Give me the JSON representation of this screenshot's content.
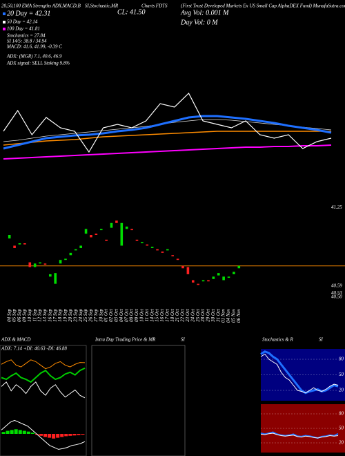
{
  "chart_data": [
    {
      "type": "line",
      "title": "20,50,100 EMA Strengths ADX,MACD,B",
      "annotations": [
        "SI,Stochastic,MR",
        "CL: 41.50",
        "Charts FDTS",
        "(First Trust Developed Markets Ex US Small Cap AlphaDEX Fund) MunafaSutra.com",
        "Avg Vol: 0.001 M",
        "Day Vol: 0 M",
        "20 Day = 42.31",
        "50 Day = 42.14",
        "100 Day = 41.81",
        "Stochastics = 27.84",
        "SI 14/5: 38.8 / 34.94",
        "MACD: 41.6, 41.99, -0.39 C",
        "ADX: (MGR) 7.1, 40.6, 46.9",
        "ADX signal: SELL Stoking 9.8%"
      ],
      "ylim": [
        40.0,
        42.0
      ],
      "series": [
        {
          "color": "#ff00ff",
          "width": 2,
          "values": [
            40.3,
            40.31,
            40.32,
            40.33,
            40.34,
            40.35,
            40.36,
            40.37,
            40.38,
            40.39,
            40.4,
            40.41,
            40.42,
            40.43,
            40.44,
            40.45,
            40.46,
            40.47,
            40.47,
            40.48,
            40.48,
            40.49,
            40.49,
            40.5
          ]
        },
        {
          "color": "#ff8c00",
          "width": 1.5,
          "values": [
            40.5,
            40.52,
            40.54,
            40.56,
            40.57,
            40.58,
            40.6,
            40.62,
            40.63,
            40.64,
            40.65,
            40.66,
            40.67,
            40.68,
            40.69,
            40.7,
            40.7,
            40.7,
            40.7,
            40.7,
            40.7,
            40.7,
            40.7,
            40.7
          ]
        },
        {
          "color": "#dddddd",
          "width": 0.8,
          "values": [
            40.55,
            40.57,
            40.6,
            40.63,
            40.65,
            40.67,
            40.69,
            40.71,
            40.73,
            40.75,
            40.77,
            40.8,
            40.83,
            40.85,
            40.87,
            40.87,
            40.86,
            40.84,
            40.82,
            40.8,
            40.78,
            40.76,
            40.74,
            40.72
          ]
        },
        {
          "color": "#1e6fff",
          "width": 3,
          "values": [
            40.45,
            40.5,
            40.55,
            40.6,
            40.62,
            40.64,
            40.65,
            40.67,
            40.7,
            40.72,
            40.75,
            40.8,
            40.85,
            40.9,
            40.92,
            40.92,
            40.9,
            40.88,
            40.85,
            40.82,
            40.78,
            40.75,
            40.72,
            40.68
          ]
        },
        {
          "color": "#ffffff",
          "width": 1.2,
          "values": [
            40.7,
            41.0,
            40.65,
            40.9,
            40.75,
            40.7,
            40.4,
            40.75,
            40.8,
            40.75,
            40.85,
            41.1,
            41.05,
            41.25,
            40.85,
            40.8,
            40.75,
            40.85,
            40.65,
            40.6,
            40.65,
            40.45,
            40.55,
            40.6
          ]
        }
      ]
    },
    {
      "type": "candlestick",
      "categories": [
        "04 Sep",
        "05 Sep",
        "06 Sep",
        "09 Sep",
        "10 Sep",
        "11 Sep",
        "12 Sep",
        "13 Sep",
        "16 Sep",
        "17 Sep",
        "18 Sep",
        "19 Sep",
        "20 Sep",
        "23 Sep",
        "24 Sep",
        "25 Sep",
        "26 Sep",
        "27 Sep",
        "30 Sep",
        "01 Oct",
        "02 Oct",
        "03 Oct",
        "04 Oct",
        "07 Oct",
        "08 Oct",
        "09 Oct",
        "10 Oct",
        "11 Oct",
        "14 Oct",
        "15 Oct",
        "16 Oct",
        "17 Oct",
        "18 Oct",
        "21 Oct",
        "22 Oct",
        "23 Oct",
        "24 Oct",
        "25 Oct",
        "28 Oct",
        "29 Oct",
        "30 Oct",
        "31 Oct",
        "01 Nov",
        "04 Nov",
        "05 Nov",
        "06 Nov"
      ],
      "open": [
        40.99,
        40.93,
        40.94,
        40.95,
        40.79,
        40.75,
        40.78,
        40.78,
        40.67,
        40.61,
        40.78,
        40.81,
        40.85,
        40.89,
        40.91,
        41.03,
        41.02,
        41.03,
        41.06,
        40.98,
        41.08,
        41.14,
        40.93,
        41.07,
        41.07,
        40.98,
        40.95,
        40.94,
        40.91,
        40.9,
        40.88,
        40.89,
        40.85,
        40.82,
        40.76,
        40.75,
        40.64,
        40.61,
        40.63,
        40.64,
        40.65,
        40.68,
        40.64,
        40.66,
        40.69,
        40.74
      ],
      "close": [
        41.02,
        40.91,
        40.95,
        40.94,
        40.75,
        40.78,
        40.79,
        40.77,
        40.69,
        40.7,
        40.81,
        40.82,
        40.87,
        40.9,
        40.93,
        41.07,
        41.0,
        41.02,
        41.07,
        40.97,
        41.12,
        41.12,
        41.12,
        41.09,
        41.06,
        40.97,
        40.96,
        40.93,
        40.92,
        40.89,
        40.87,
        40.9,
        40.84,
        40.81,
        40.74,
        40.69,
        40.62,
        40.6,
        40.64,
        40.63,
        40.67,
        40.7,
        40.67,
        40.67,
        40.71,
        40.76
      ],
      "colors": {
        "up": "#00dd00",
        "down": "#ff2020"
      },
      "reference_line": 40.76,
      "reference_color": "#ff8c00",
      "ylim": [
        40.44,
        41.31
      ],
      "yticks": [
        41.25,
        40.59,
        40.53,
        {
          "value": 40.5,
          "label": "40.50"
        }
      ]
    },
    {
      "type": "line",
      "title": "ADX & MACD",
      "annotation": "ADX: 7.14 +DI: 40.63 -DI: 46.88",
      "ylim": [
        0,
        60
      ],
      "series": [
        {
          "color": "#ff8c00",
          "values": [
            45,
            48,
            50,
            44,
            42,
            46,
            50,
            48,
            44,
            40,
            42,
            46,
            48,
            44,
            42,
            45,
            47,
            46.88
          ]
        },
        {
          "color": "#00cc00",
          "width": 2,
          "values": [
            30,
            28,
            32,
            35,
            30,
            28,
            25,
            30,
            35,
            38,
            32,
            28,
            30,
            34,
            36,
            33,
            38,
            40.63
          ]
        },
        {
          "color": "#ffffff",
          "values": [
            20,
            25,
            15,
            22,
            18,
            12,
            20,
            25,
            15,
            10,
            18,
            22,
            14,
            8,
            12,
            16,
            10,
            7.14
          ]
        }
      ]
    },
    {
      "type": "bar",
      "values": [
        0.05,
        0.08,
        0.1,
        0.12,
        0.1,
        0.08,
        0.06,
        0.03,
        -0.02,
        -0.05,
        -0.08,
        -0.1,
        -0.12,
        -0.1,
        -0.08,
        -0.06,
        -0.05,
        -0.04,
        -0.03,
        -0.02
      ],
      "colors": {
        "positive": "#00dd00",
        "negative": "#ff2020"
      },
      "ylim": [
        -0.5,
        0.5
      ],
      "series": [
        {
          "color": "#ffffff",
          "values": [
            0.1,
            0.2,
            0.3,
            0.35,
            0.3,
            0.25,
            0.2,
            0.1,
            0,
            -0.1,
            -0.2,
            -0.3,
            -0.35,
            -0.4,
            -0.38,
            -0.35,
            -0.3,
            -0.28,
            -0.25,
            -0.2
          ]
        }
      ]
    },
    {
      "type": "panel",
      "title": "Intra Day Trading Price & MR",
      "subtitle": "SI"
    },
    {
      "type": "line",
      "title": "Stochastics & R",
      "subtitle": "SI",
      "background": "#000080",
      "ylim": [
        0,
        100
      ],
      "yticks": [
        20,
        50,
        80
      ],
      "series": [
        {
          "color": "#1e6fff",
          "width": 3,
          "values": [
            90,
            95,
            92,
            85,
            80,
            70,
            60,
            50,
            40,
            30,
            20,
            15,
            18,
            20,
            22,
            18,
            20,
            25,
            30,
            27.84
          ]
        },
        {
          "color": "#ffffff",
          "values": [
            85,
            90,
            80,
            75,
            70,
            55,
            45,
            40,
            30,
            20,
            18,
            15,
            20,
            25,
            20,
            18,
            22,
            28,
            32,
            30
          ]
        }
      ]
    },
    {
      "type": "line",
      "background": "#8b0000",
      "ylim": [
        0,
        100
      ],
      "yticks": [
        20,
        50,
        80
      ],
      "series": [
        {
          "color": "#1e6fff",
          "width": 2,
          "values": [
            40,
            38,
            40,
            42,
            38,
            36,
            35,
            36,
            38,
            34,
            33,
            35,
            34,
            32,
            30,
            33,
            34,
            36,
            35,
            38.8
          ]
        },
        {
          "color": "#ffffff",
          "values": [
            38,
            37,
            39,
            40,
            37,
            35,
            34,
            35,
            36,
            33,
            32,
            34,
            33,
            31,
            30,
            32,
            33,
            35,
            34,
            34.94
          ]
        }
      ]
    }
  ]
}
